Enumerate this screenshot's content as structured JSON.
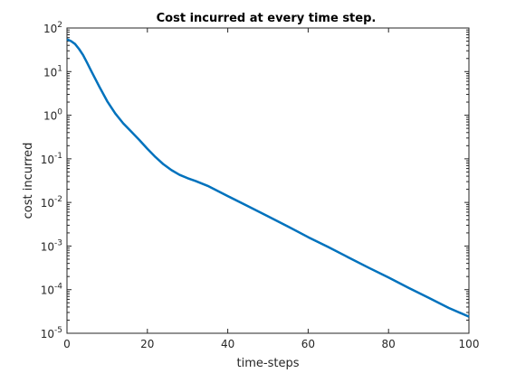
{
  "chart_data": {
    "type": "line",
    "title": "Cost incurred at every time step.",
    "xlabel": "time-steps",
    "ylabel": "cost incurred",
    "xlim": [
      0,
      100
    ],
    "ylim": [
      1e-05,
      100
    ],
    "yscale": "log",
    "grid": false,
    "x_ticks": [
      "0",
      "20",
      "40",
      "60",
      "80",
      "100"
    ],
    "y_ticks": [
      {
        "base": "10",
        "exp": "2"
      },
      {
        "base": "10",
        "exp": "1"
      },
      {
        "base": "10",
        "exp": "0"
      },
      {
        "base": "10",
        "exp": "-1"
      },
      {
        "base": "10",
        "exp": "-2"
      },
      {
        "base": "10",
        "exp": "-3"
      },
      {
        "base": "10",
        "exp": "-4"
      },
      {
        "base": "10",
        "exp": "-5"
      }
    ],
    "series": [
      {
        "color": "#0072BD",
        "x": [
          0,
          1,
          2,
          3,
          4,
          5,
          6,
          8,
          10,
          12,
          14,
          16,
          18,
          20,
          22,
          24,
          26,
          28,
          30,
          32,
          35,
          40,
          45,
          50,
          55,
          60,
          65,
          70,
          75,
          80,
          85,
          90,
          95,
          100
        ],
        "y": [
          55,
          50,
          43,
          33,
          24,
          16,
          10.5,
          4.6,
          2.1,
          1.1,
          0.65,
          0.42,
          0.27,
          0.17,
          0.11,
          0.075,
          0.055,
          0.043,
          0.036,
          0.031,
          0.024,
          0.014,
          0.0082,
          0.0048,
          0.0028,
          0.0016,
          0.00095,
          0.00055,
          0.00032,
          0.00019,
          0.00011,
          6.5e-05,
          3.8e-05,
          2.4e-05
        ]
      }
    ]
  }
}
